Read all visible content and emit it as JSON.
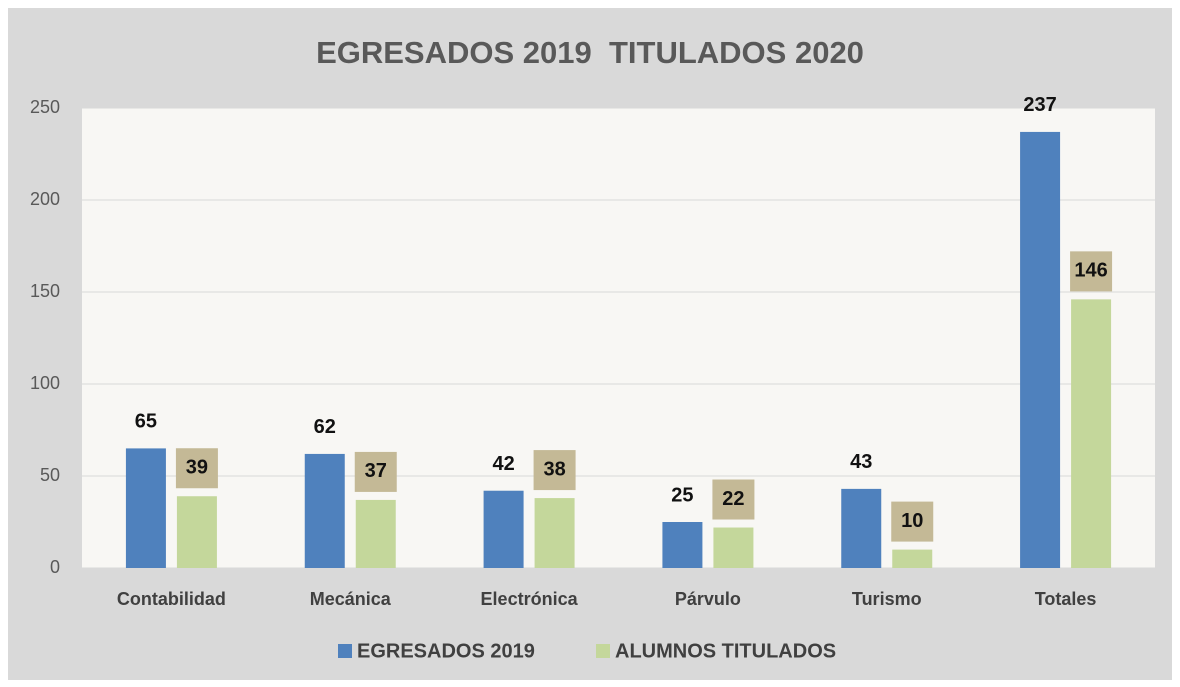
{
  "chart_data": {
    "type": "bar",
    "title": "EGRESADOS 2019  TITULADOS 2020",
    "categories": [
      "Contabilidad",
      "Mecánica",
      "Electrónica",
      "Párvulo",
      "Turismo",
      "Totales"
    ],
    "series": [
      {
        "name": "EGRESADOS 2019",
        "color": "#4f81bd",
        "values": [
          65,
          62,
          42,
          25,
          43,
          237
        ]
      },
      {
        "name": "ALUMNOS TITULADOS",
        "color": "#c4d79b",
        "values": [
          39,
          37,
          38,
          22,
          10,
          146
        ]
      }
    ],
    "ylim": [
      0,
      250
    ],
    "yticks": [
      0,
      50,
      100,
      150,
      200,
      250
    ],
    "grid": true,
    "legend": "bottom"
  }
}
